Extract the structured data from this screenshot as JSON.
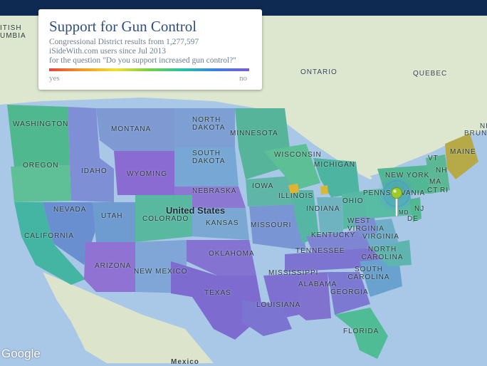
{
  "legend": {
    "title": "Support for Gun Control",
    "line1": "Congressional District results from 1,277,597",
    "line2": "iSideWith.com users since Jul 2013",
    "line3": "for the question \"Do you support increased gun control?\"",
    "yes_label": "yes",
    "no_label": "no"
  },
  "map": {
    "country_label": "United States",
    "border_labels": [
      "ITISH",
      "UMBIA"
    ],
    "foreign_labels": {
      "ontario": "ONTARIO",
      "quebec": "QUEBEC",
      "brunswick": "BRUNS",
      "ne": "NE",
      "mexico": "Mexico"
    },
    "state_labels": {
      "washington": "WASHINGTON",
      "oregon": "OREGON",
      "california": "CALIFORNIA",
      "nevada": "NEVADA",
      "idaho": "IDAHO",
      "montana": "MONTANA",
      "wyoming": "WYOMING",
      "utah": "UTAH",
      "arizona": "ARIZONA",
      "colorado": "COLORADO",
      "new_mexico": "NEW MEXICO",
      "north_dakota": "NORTH DAKOTA",
      "south_dakota": "SOUTH DAKOTA",
      "nebraska": "NEBRASKA",
      "kansas": "KANSAS",
      "oklahoma": "OKLAHOMA",
      "texas": "TEXAS",
      "minnesota": "MINNESOTA",
      "iowa": "IOWA",
      "missouri": "MISSOURI",
      "wisconsin": "WISCONSIN",
      "illinois": "ILLINOIS",
      "michigan": "MICHIGAN",
      "indiana": "INDIANA",
      "ohio": "OHIO",
      "kentucky": "KENTUCKY",
      "tennessee": "TENNESSEE",
      "mississippi": "MISSISSIPPI",
      "alabama": "ALABAMA",
      "louisiana": "LOUISIANA",
      "georgia": "GEORGIA",
      "florida": "FLORIDA",
      "west_virginia": "WEST VIRGINIA",
      "virginia": "VIRGINIA",
      "north_carolina": "NORTH CAROLINA",
      "south_carolina": "SOUTH CAROLINA",
      "pennsylvania": "PENNSYLVANIA",
      "new_york": "NEW YORK",
      "nj": "NJ",
      "de": "DE",
      "md": "MD",
      "vt": "VT",
      "nh": "NH",
      "ma": "MA",
      "ct": "CT",
      "ri": "RI",
      "maine": "MAINE"
    },
    "attribution": "Google"
  },
  "colors": {
    "yes": "#e8433b",
    "no": "#7b5ad6",
    "water": "#a9c7e6",
    "land": "#dfe8d2",
    "header": "#0f2a52"
  },
  "marker": {
    "name": "location-pin-icon",
    "color": "#9ecb2c"
  }
}
